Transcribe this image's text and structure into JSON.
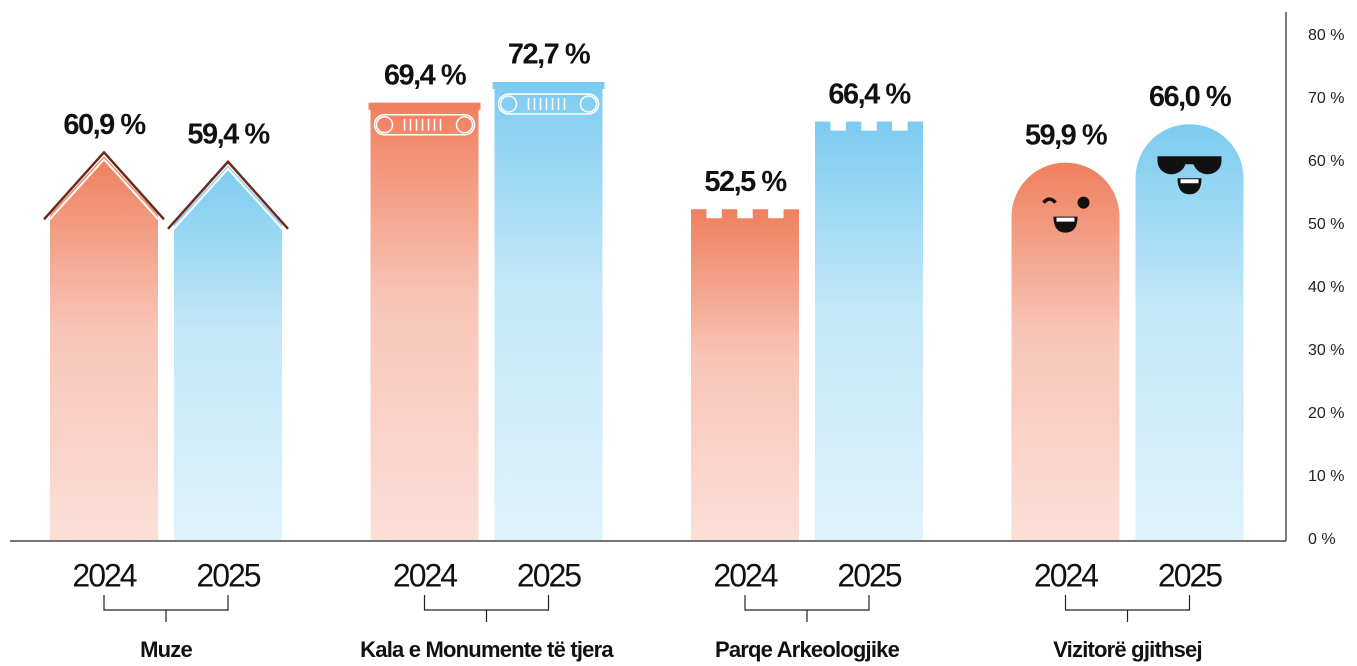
{
  "chart_data": {
    "type": "bar",
    "categories": [
      "Muze",
      "Kala e Monumente të tjera",
      "Parqe Arkeologjike",
      "Vizitorë gjithsej"
    ],
    "series": [
      {
        "name": "2024",
        "color": "#ef7f5e",
        "values": [
          60.9,
          69.4,
          52.5,
          59.9
        ],
        "value_labels": [
          "60,9 %",
          "69,4 %",
          "52,5 %",
          "59,9 %"
        ]
      },
      {
        "name": "2025",
        "color": "#7ccbf0",
        "values": [
          59.4,
          72.7,
          66.4,
          66.0
        ],
        "value_labels": [
          "59,4 %",
          "72,7 %",
          "66,4 %",
          "66,0 %"
        ]
      }
    ],
    "ylim": [
      0,
      80
    ],
    "yticks": [
      {
        "value": 0,
        "label": "0 %"
      },
      {
        "value": 10,
        "label": "10 %"
      },
      {
        "value": 20,
        "label": "20 %"
      },
      {
        "value": 30,
        "label": "30 %"
      },
      {
        "value": 40,
        "label": "40 %"
      },
      {
        "value": 50,
        "label": "50 %"
      },
      {
        "value": 60,
        "label": "60 %"
      },
      {
        "value": 70,
        "label": "70 %"
      },
      {
        "value": 80,
        "label": "80 %"
      }
    ]
  }
}
